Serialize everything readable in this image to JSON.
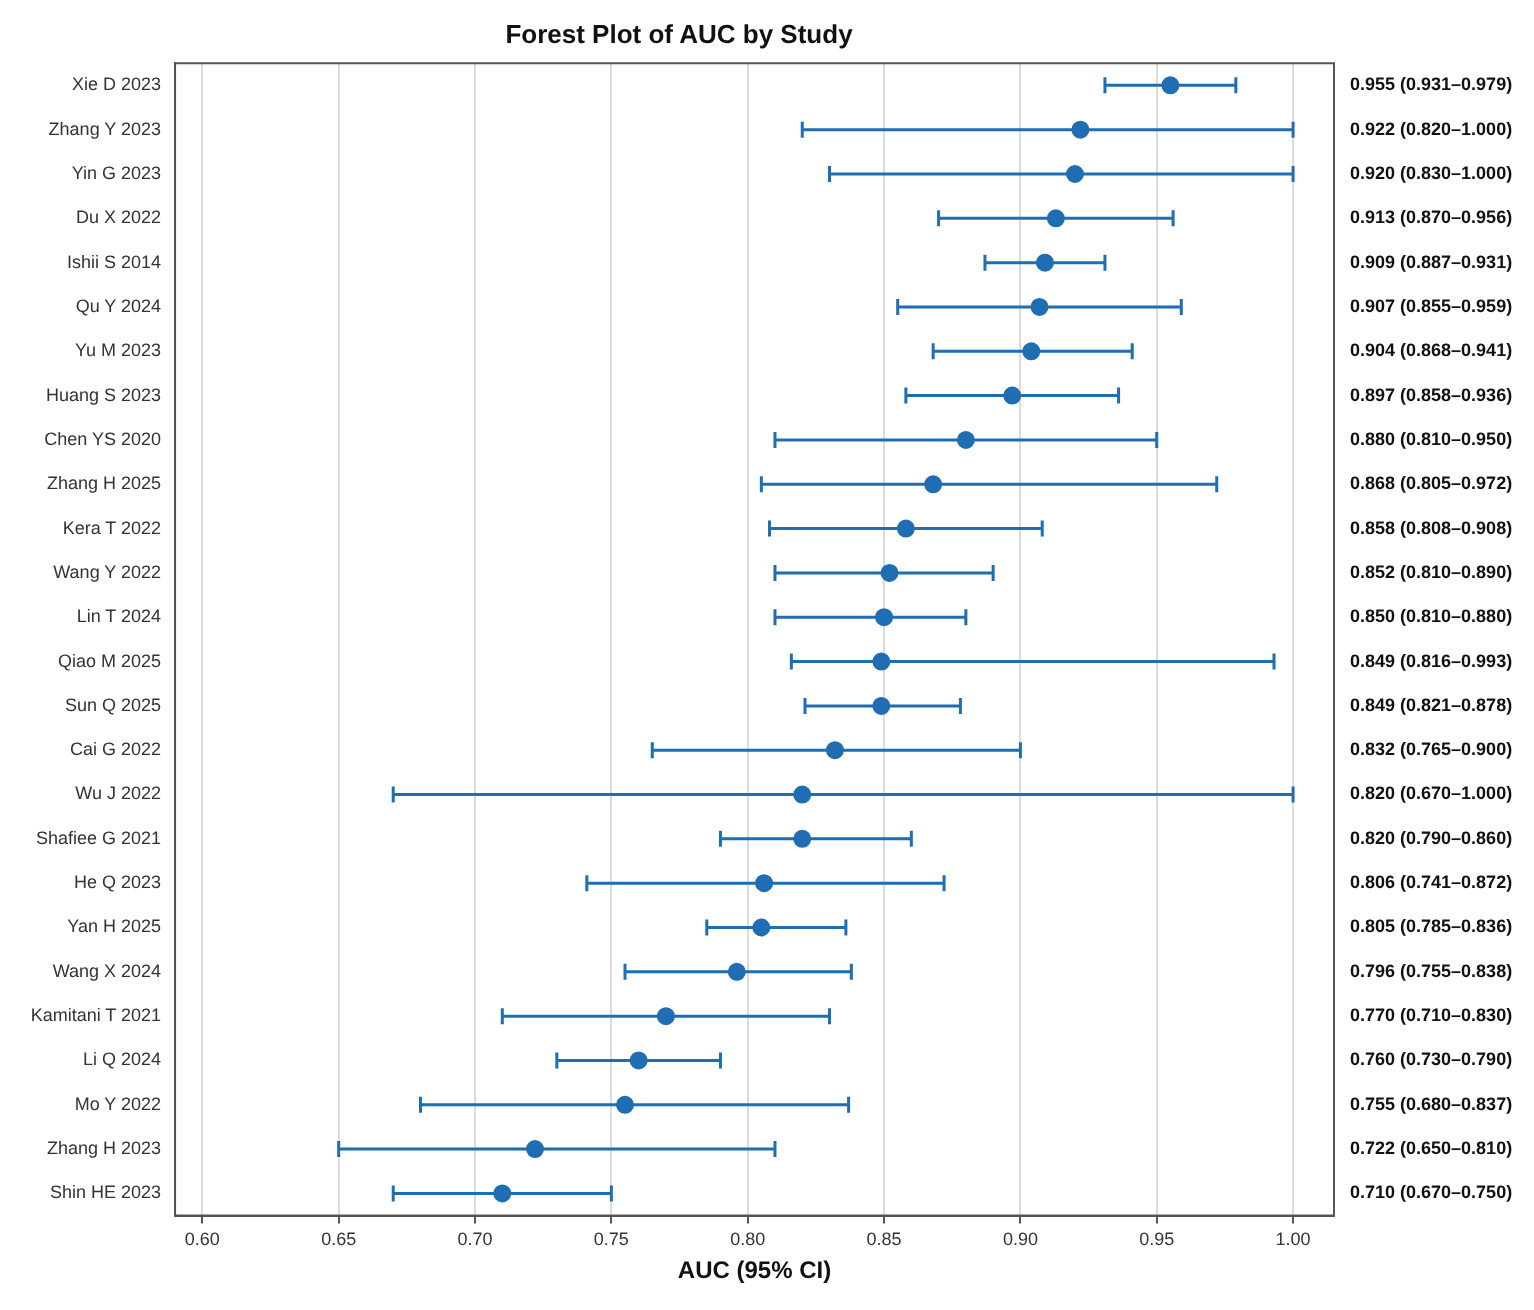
{
  "chart_data": {
    "type": "scatter",
    "orientation": "horizontal",
    "title": "Forest Plot of AUC by Study",
    "xlabel": "AUC (95% CI)",
    "categories": [
      "Xie D 2023",
      "Zhang Y 2023",
      "Yin G 2023",
      "Du X 2022",
      "Ishii S 2014",
      "Qu Y 2024",
      "Yu M 2023",
      "Huang S 2023",
      "Chen YS 2020",
      "Zhang H 2025",
      "Kera T 2022",
      "Wang Y 2022",
      "Lin T 2024",
      "Qiao M 2025",
      "Sun Q 2025",
      "Cai G 2022",
      "Wu J 2022",
      "Shafiee G 2021",
      "He Q 2023",
      "Yan H 2025",
      "Wang X 2024",
      "Kamitani T 2021",
      "Li Q 2024",
      "Mo Y 2022",
      "Zhang H 2023",
      "Shin HE 2023"
    ],
    "values": [
      0.955,
      0.922,
      0.92,
      0.913,
      0.909,
      0.907,
      0.904,
      0.897,
      0.88,
      0.868,
      0.858,
      0.852,
      0.85,
      0.849,
      0.849,
      0.832,
      0.82,
      0.82,
      0.806,
      0.805,
      0.796,
      0.77,
      0.76,
      0.755,
      0.722,
      0.71
    ],
    "errors": [
      [
        0.931,
        0.979
      ],
      [
        0.82,
        1.0
      ],
      [
        0.83,
        1.0
      ],
      [
        0.87,
        0.956
      ],
      [
        0.887,
        0.931
      ],
      [
        0.855,
        0.959
      ],
      [
        0.868,
        0.941
      ],
      [
        0.858,
        0.936
      ],
      [
        0.81,
        0.95
      ],
      [
        0.805,
        0.972
      ],
      [
        0.808,
        0.908
      ],
      [
        0.81,
        0.89
      ],
      [
        0.81,
        0.88
      ],
      [
        0.816,
        0.993
      ],
      [
        0.821,
        0.878
      ],
      [
        0.765,
        0.9
      ],
      [
        0.67,
        1.0
      ],
      [
        0.79,
        0.86
      ],
      [
        0.741,
        0.872
      ],
      [
        0.785,
        0.836
      ],
      [
        0.755,
        0.838
      ],
      [
        0.71,
        0.83
      ],
      [
        0.73,
        0.79
      ],
      [
        0.68,
        0.837
      ],
      [
        0.65,
        0.81
      ],
      [
        0.67,
        0.75
      ]
    ],
    "value_labels": [
      "0.955 (0.931–0.979)",
      "0.922 (0.820–1.000)",
      "0.920 (0.830–1.000)",
      "0.913 (0.870–0.956)",
      "0.909 (0.887–0.931)",
      "0.907 (0.855–0.959)",
      "0.904 (0.868–0.941)",
      "0.897 (0.858–0.936)",
      "0.880 (0.810–0.950)",
      "0.868 (0.805–0.972)",
      "0.858 (0.808–0.908)",
      "0.852 (0.810–0.890)",
      "0.850 (0.810–0.880)",
      "0.849 (0.816–0.993)",
      "0.849 (0.821–0.878)",
      "0.832 (0.765–0.900)",
      "0.820 (0.670–1.000)",
      "0.820 (0.790–0.860)",
      "0.806 (0.741–0.872)",
      "0.805 (0.785–0.836)",
      "0.796 (0.755–0.838)",
      "0.770 (0.710–0.830)",
      "0.760 (0.730–0.790)",
      "0.755 (0.680–0.837)",
      "0.722 (0.650–0.810)",
      "0.710 (0.670–0.750)"
    ],
    "color": "#1f6db3",
    "xlim": [
      0.59,
      1.015
    ],
    "xticks": [
      {
        "value": 0.6,
        "label": "0.60"
      },
      {
        "value": 0.65,
        "label": "0.65"
      },
      {
        "value": 0.7,
        "label": "0.70"
      },
      {
        "value": 0.75,
        "label": "0.75"
      },
      {
        "value": 0.8,
        "label": "0.80"
      },
      {
        "value": 0.85,
        "label": "0.85"
      },
      {
        "value": 0.9,
        "label": "0.90"
      },
      {
        "value": 0.95,
        "label": "0.95"
      },
      {
        "value": 1.0,
        "label": "1.00"
      }
    ],
    "grid": "x",
    "marker": "circle"
  }
}
